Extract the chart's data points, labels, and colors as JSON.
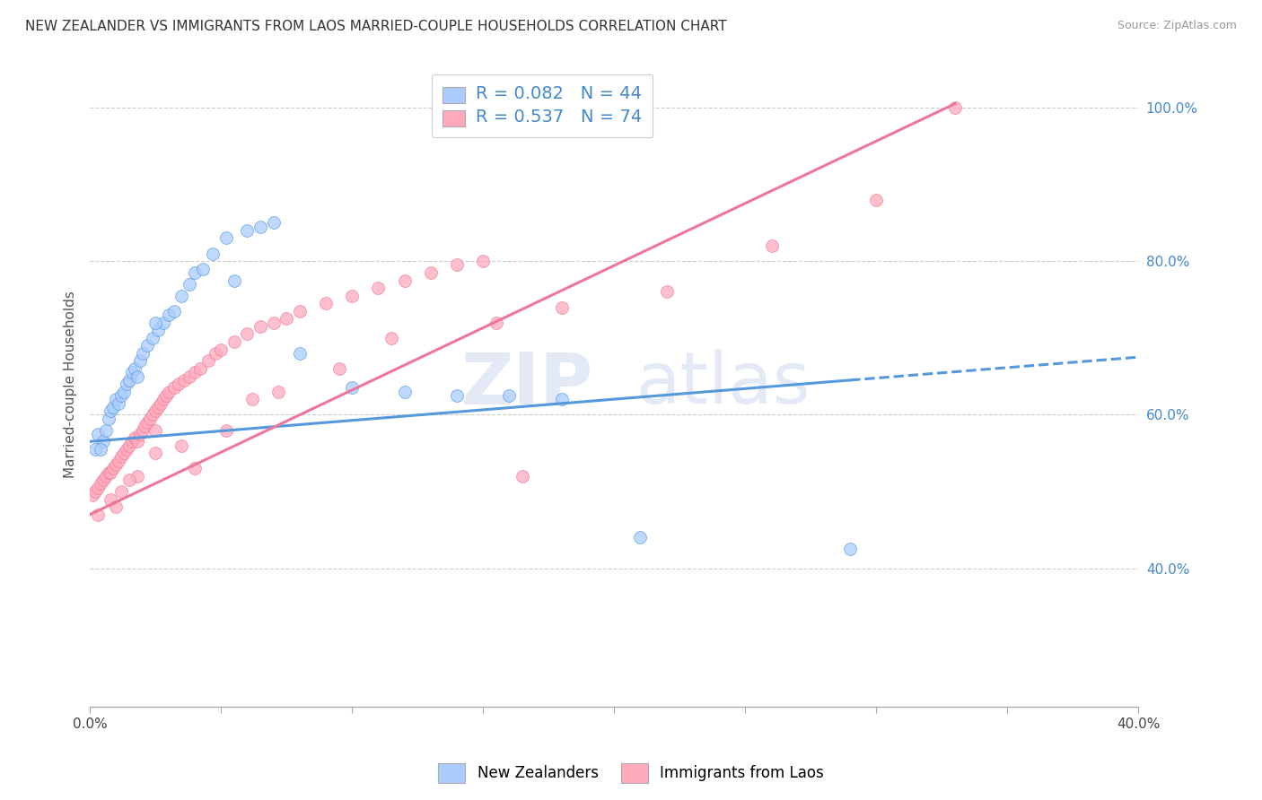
{
  "title": "NEW ZEALANDER VS IMMIGRANTS FROM LAOS MARRIED-COUPLE HOUSEHOLDS CORRELATION CHART",
  "source": "Source: ZipAtlas.com",
  "ylabel": "Married-couple Households",
  "ytick_labels": [
    "40.0%",
    "60.0%",
    "80.0%",
    "100.0%"
  ],
  "ytick_values": [
    0.4,
    0.6,
    0.8,
    1.0
  ],
  "xlim": [
    0.0,
    0.4
  ],
  "ylim": [
    0.22,
    1.06
  ],
  "legend1_text": "R = 0.082   N = 44",
  "legend2_text": "R = 0.537   N = 74",
  "nz_color": "#aaccff",
  "laos_color": "#ffaabb",
  "nz_line_color": "#5599dd",
  "laos_line_color": "#ee7799",
  "legend_text_color": "#4488cc",
  "watermark_1": "ZIP",
  "watermark_2": "atlas",
  "background_color": "#ffffff",
  "grid_color": "#cccccc",
  "nz_scatter_x": [
    0.003,
    0.005,
    0.006,
    0.007,
    0.008,
    0.009,
    0.01,
    0.011,
    0.012,
    0.013,
    0.014,
    0.015,
    0.016,
    0.017,
    0.018,
    0.019,
    0.02,
    0.022,
    0.024,
    0.026,
    0.028,
    0.03,
    0.032,
    0.035,
    0.038,
    0.04,
    0.043,
    0.047,
    0.052,
    0.06,
    0.065,
    0.07,
    0.002,
    0.004,
    0.025,
    0.055,
    0.08,
    0.1,
    0.12,
    0.14,
    0.16,
    0.18,
    0.21,
    0.29
  ],
  "nz_scatter_y": [
    0.575,
    0.565,
    0.58,
    0.595,
    0.605,
    0.61,
    0.62,
    0.615,
    0.625,
    0.63,
    0.64,
    0.645,
    0.655,
    0.66,
    0.65,
    0.67,
    0.68,
    0.69,
    0.7,
    0.71,
    0.72,
    0.73,
    0.735,
    0.755,
    0.77,
    0.785,
    0.79,
    0.81,
    0.83,
    0.84,
    0.845,
    0.85,
    0.555,
    0.555,
    0.72,
    0.775,
    0.68,
    0.635,
    0.63,
    0.625,
    0.625,
    0.62,
    0.44,
    0.425
  ],
  "laos_scatter_x": [
    0.001,
    0.002,
    0.003,
    0.004,
    0.005,
    0.006,
    0.007,
    0.008,
    0.009,
    0.01,
    0.011,
    0.012,
    0.013,
    0.014,
    0.015,
    0.016,
    0.017,
    0.018,
    0.019,
    0.02,
    0.021,
    0.022,
    0.023,
    0.024,
    0.025,
    0.026,
    0.027,
    0.028,
    0.029,
    0.03,
    0.032,
    0.034,
    0.036,
    0.038,
    0.04,
    0.042,
    0.045,
    0.048,
    0.05,
    0.055,
    0.06,
    0.065,
    0.07,
    0.075,
    0.08,
    0.09,
    0.1,
    0.11,
    0.12,
    0.13,
    0.14,
    0.15,
    0.003,
    0.008,
    0.012,
    0.018,
    0.025,
    0.035,
    0.052,
    0.062,
    0.072,
    0.095,
    0.115,
    0.155,
    0.18,
    0.22,
    0.26,
    0.3,
    0.33,
    0.01,
    0.015,
    0.025,
    0.04,
    0.165
  ],
  "laos_scatter_y": [
    0.495,
    0.5,
    0.505,
    0.51,
    0.515,
    0.52,
    0.525,
    0.525,
    0.53,
    0.535,
    0.54,
    0.545,
    0.55,
    0.555,
    0.56,
    0.565,
    0.57,
    0.565,
    0.575,
    0.58,
    0.585,
    0.59,
    0.595,
    0.6,
    0.605,
    0.61,
    0.615,
    0.62,
    0.625,
    0.63,
    0.635,
    0.64,
    0.645,
    0.65,
    0.655,
    0.66,
    0.67,
    0.68,
    0.685,
    0.695,
    0.705,
    0.715,
    0.72,
    0.725,
    0.735,
    0.745,
    0.755,
    0.765,
    0.775,
    0.785,
    0.795,
    0.8,
    0.47,
    0.49,
    0.5,
    0.52,
    0.55,
    0.56,
    0.58,
    0.62,
    0.63,
    0.66,
    0.7,
    0.72,
    0.74,
    0.76,
    0.82,
    0.88,
    1.0,
    0.48,
    0.515,
    0.58,
    0.53,
    0.52
  ],
  "nz_line_x0": 0.0,
  "nz_line_y0": 0.565,
  "nz_line_x1": 0.29,
  "nz_line_y1": 0.645,
  "nz_line_xdash0": 0.29,
  "nz_line_ydash0": 0.645,
  "nz_line_xdash1": 0.4,
  "nz_line_ydash1": 0.675,
  "laos_line_x0": 0.0,
  "laos_line_y0": 0.47,
  "laos_line_x1": 0.33,
  "laos_line_y1": 1.005
}
